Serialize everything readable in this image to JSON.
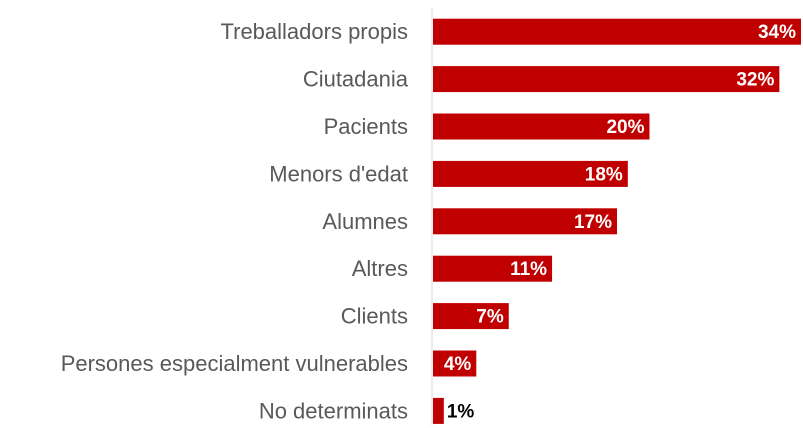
{
  "chart_data": {
    "type": "bar",
    "orientation": "horizontal",
    "color": "#c00000",
    "categories": [
      "Treballadors propis",
      "Ciutadania",
      "Pacients",
      "Menors d'edat",
      "Alumnes",
      "Altres",
      "Clients",
      "Persones especialment vulnerables",
      "No determinats"
    ],
    "values": [
      34,
      32,
      20,
      18,
      17,
      11,
      7,
      4,
      1
    ],
    "value_labels": [
      "34%",
      "32%",
      "20%",
      "18%",
      "17%",
      "11%",
      "7%",
      "4%",
      "1%"
    ]
  }
}
